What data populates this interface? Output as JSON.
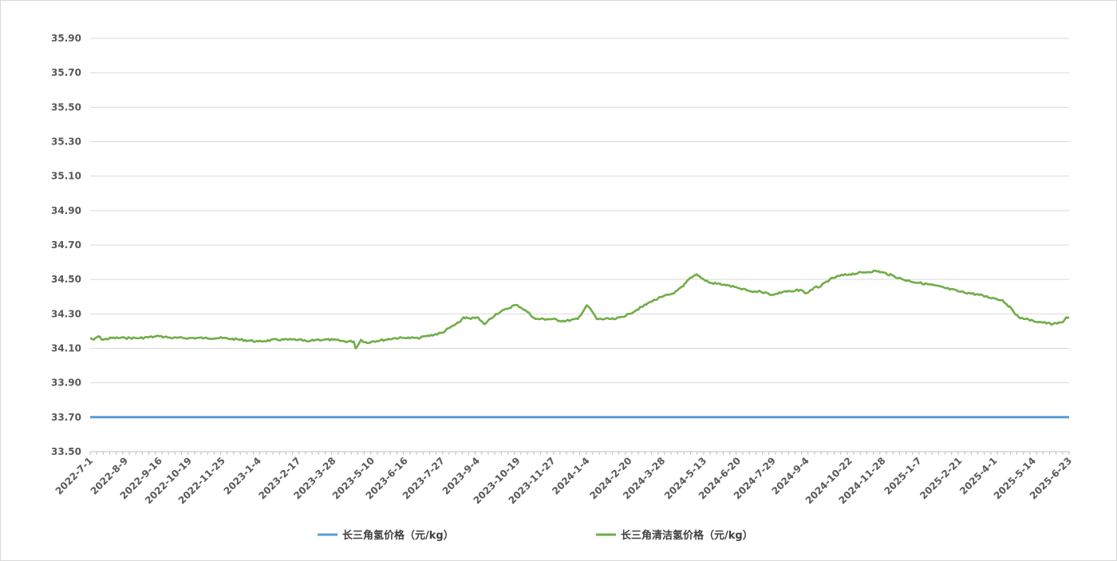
{
  "chart_data": {
    "type": "line",
    "title": "",
    "xlabel": "",
    "ylabel": "",
    "ylim": [
      33.5,
      35.9
    ],
    "y_ticks": [
      "33.50",
      "33.70",
      "33.90",
      "34.10",
      "34.30",
      "34.50",
      "34.70",
      "34.90",
      "35.10",
      "35.30",
      "35.50",
      "35.70",
      "35.90"
    ],
    "x_tick_labels": [
      "2022-7-1",
      "2022-8-9",
      "2022-9-16",
      "2022-10-19",
      "2022-11-25",
      "2023-1-4",
      "2023-2-17",
      "2023-3-28",
      "2023-5-10",
      "2023-6-16",
      "2023-7-27",
      "2023-9-4",
      "2023-10-19",
      "2023-11-27",
      "2024-1-4",
      "2024-2-20",
      "2024-3-28",
      "2024-5-13",
      "2024-6-20",
      "2024-7-29",
      "2024-9-4",
      "2024-10-22",
      "2024-11-28",
      "2025-1-7",
      "2025-2-21",
      "2025-4-1",
      "2025-5-14",
      "2025-6-23"
    ],
    "grid": true,
    "legend_position": "bottom",
    "series": [
      {
        "name": "长三角氢价格（元/kg）",
        "color": "#5b9bd5",
        "x": [
          "2022-7-1",
          "2025-6-23"
        ],
        "values": [
          33.7,
          33.7
        ]
      },
      {
        "name": "长三角清洁氢价格（元/kg）",
        "color": "#70ad47",
        "x": [
          "2022-7-1",
          "2022-7-5",
          "2022-7-10",
          "2022-7-15",
          "2022-7-25",
          "2022-8-9",
          "2022-8-25",
          "2022-9-16",
          "2022-10-1",
          "2022-10-19",
          "2022-11-5",
          "2022-11-25",
          "2022-12-15",
          "2023-1-4",
          "2023-1-25",
          "2023-2-17",
          "2023-2-28",
          "2023-3-10",
          "2023-3-28",
          "2023-4-10",
          "2023-4-20",
          "2023-4-22",
          "2023-4-28",
          "2023-5-5",
          "2023-5-10",
          "2023-5-25",
          "2023-6-5",
          "2023-6-16",
          "2023-6-30",
          "2023-7-10",
          "2023-7-27",
          "2023-8-5",
          "2023-8-15",
          "2023-8-20",
          "2023-8-28",
          "2023-9-4",
          "2023-9-12",
          "2023-9-25",
          "2023-10-8",
          "2023-10-15",
          "2023-10-19",
          "2023-10-28",
          "2023-11-8",
          "2023-11-27",
          "2023-12-5",
          "2023-12-12",
          "2023-12-25",
          "2024-1-4",
          "2024-1-8",
          "2024-1-15",
          "2024-2-5",
          "2024-2-20",
          "2024-3-5",
          "2024-3-15",
          "2024-3-28",
          "2024-4-10",
          "2024-4-20",
          "2024-4-28",
          "2024-5-5",
          "2024-5-13",
          "2024-5-20",
          "2024-6-5",
          "2024-6-20",
          "2024-7-5",
          "2024-7-15",
          "2024-7-29",
          "2024-8-10",
          "2024-8-20",
          "2024-8-28",
          "2024-9-4",
          "2024-9-12",
          "2024-9-20",
          "2024-9-30",
          "2024-10-10",
          "2024-10-22",
          "2024-11-5",
          "2024-11-20",
          "2024-11-28",
          "2024-12-10",
          "2024-12-20",
          "2025-1-7",
          "2025-1-20",
          "2025-2-5",
          "2025-2-21",
          "2025-3-5",
          "2025-3-15",
          "2025-4-1",
          "2025-4-10",
          "2025-4-20",
          "2025-4-28",
          "2025-5-5",
          "2025-5-14",
          "2025-5-25",
          "2025-6-5",
          "2025-6-15",
          "2025-6-20",
          "2025-6-23"
        ],
        "values": [
          34.16,
          34.15,
          34.17,
          34.15,
          34.16,
          34.16,
          34.16,
          34.17,
          34.16,
          34.16,
          34.16,
          34.16,
          34.15,
          34.14,
          34.15,
          34.15,
          34.14,
          34.15,
          34.15,
          34.14,
          34.14,
          34.1,
          34.15,
          34.13,
          34.14,
          34.15,
          34.16,
          34.16,
          34.16,
          34.17,
          34.19,
          34.22,
          34.25,
          34.28,
          34.27,
          34.28,
          34.24,
          34.3,
          34.33,
          34.35,
          34.35,
          34.32,
          34.27,
          34.27,
          34.26,
          34.26,
          34.27,
          34.35,
          34.33,
          34.27,
          34.27,
          34.3,
          34.34,
          34.37,
          34.4,
          34.42,
          34.46,
          34.51,
          34.53,
          34.5,
          34.48,
          34.47,
          34.45,
          34.43,
          34.43,
          34.41,
          34.43,
          34.43,
          34.44,
          34.42,
          34.45,
          34.46,
          34.5,
          34.52,
          34.53,
          34.54,
          34.55,
          34.54,
          34.52,
          34.5,
          34.48,
          34.47,
          34.45,
          34.43,
          34.42,
          34.41,
          34.39,
          34.38,
          34.33,
          34.28,
          34.27,
          34.26,
          34.25,
          34.24,
          34.25,
          34.28,
          34.28
        ]
      }
    ]
  }
}
